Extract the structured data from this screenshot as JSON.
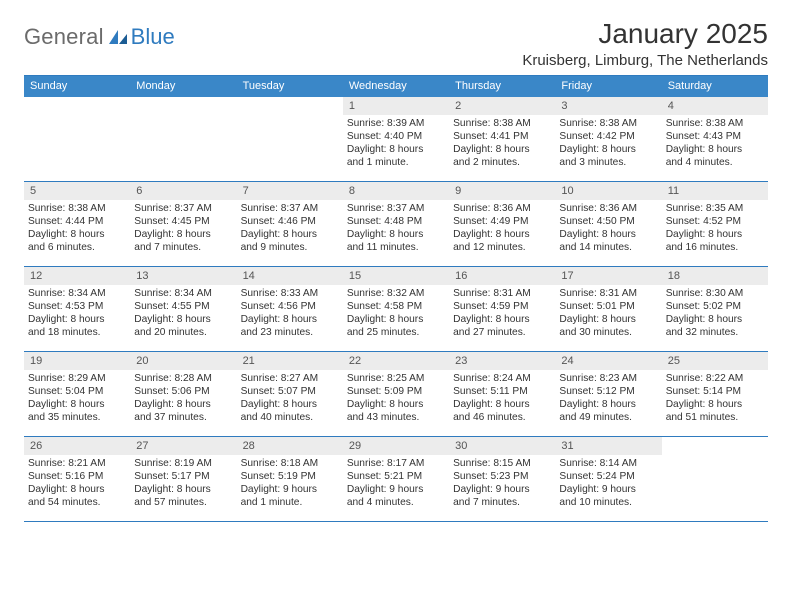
{
  "logo": {
    "word1": "General",
    "word2": "Blue"
  },
  "title": "January 2025",
  "location": "Kruisberg, Limburg, The Netherlands",
  "colors": {
    "header_bg": "#3a87c8",
    "rule": "#2f7bbf",
    "daynum_bg": "#ececec",
    "text": "#333333",
    "logo_gray": "#6b6b6b",
    "logo_blue": "#2f7bbf"
  },
  "dow": [
    "Sunday",
    "Monday",
    "Tuesday",
    "Wednesday",
    "Thursday",
    "Friday",
    "Saturday"
  ],
  "weeks": [
    [
      {
        "n": "",
        "lines": []
      },
      {
        "n": "",
        "lines": []
      },
      {
        "n": "",
        "lines": []
      },
      {
        "n": "1",
        "lines": [
          "Sunrise: 8:39 AM",
          "Sunset: 4:40 PM",
          "Daylight: 8 hours",
          "and 1 minute."
        ]
      },
      {
        "n": "2",
        "lines": [
          "Sunrise: 8:38 AM",
          "Sunset: 4:41 PM",
          "Daylight: 8 hours",
          "and 2 minutes."
        ]
      },
      {
        "n": "3",
        "lines": [
          "Sunrise: 8:38 AM",
          "Sunset: 4:42 PM",
          "Daylight: 8 hours",
          "and 3 minutes."
        ]
      },
      {
        "n": "4",
        "lines": [
          "Sunrise: 8:38 AM",
          "Sunset: 4:43 PM",
          "Daylight: 8 hours",
          "and 4 minutes."
        ]
      }
    ],
    [
      {
        "n": "5",
        "lines": [
          "Sunrise: 8:38 AM",
          "Sunset: 4:44 PM",
          "Daylight: 8 hours",
          "and 6 minutes."
        ]
      },
      {
        "n": "6",
        "lines": [
          "Sunrise: 8:37 AM",
          "Sunset: 4:45 PM",
          "Daylight: 8 hours",
          "and 7 minutes."
        ]
      },
      {
        "n": "7",
        "lines": [
          "Sunrise: 8:37 AM",
          "Sunset: 4:46 PM",
          "Daylight: 8 hours",
          "and 9 minutes."
        ]
      },
      {
        "n": "8",
        "lines": [
          "Sunrise: 8:37 AM",
          "Sunset: 4:48 PM",
          "Daylight: 8 hours",
          "and 11 minutes."
        ]
      },
      {
        "n": "9",
        "lines": [
          "Sunrise: 8:36 AM",
          "Sunset: 4:49 PM",
          "Daylight: 8 hours",
          "and 12 minutes."
        ]
      },
      {
        "n": "10",
        "lines": [
          "Sunrise: 8:36 AM",
          "Sunset: 4:50 PM",
          "Daylight: 8 hours",
          "and 14 minutes."
        ]
      },
      {
        "n": "11",
        "lines": [
          "Sunrise: 8:35 AM",
          "Sunset: 4:52 PM",
          "Daylight: 8 hours",
          "and 16 minutes."
        ]
      }
    ],
    [
      {
        "n": "12",
        "lines": [
          "Sunrise: 8:34 AM",
          "Sunset: 4:53 PM",
          "Daylight: 8 hours",
          "and 18 minutes."
        ]
      },
      {
        "n": "13",
        "lines": [
          "Sunrise: 8:34 AM",
          "Sunset: 4:55 PM",
          "Daylight: 8 hours",
          "and 20 minutes."
        ]
      },
      {
        "n": "14",
        "lines": [
          "Sunrise: 8:33 AM",
          "Sunset: 4:56 PM",
          "Daylight: 8 hours",
          "and 23 minutes."
        ]
      },
      {
        "n": "15",
        "lines": [
          "Sunrise: 8:32 AM",
          "Sunset: 4:58 PM",
          "Daylight: 8 hours",
          "and 25 minutes."
        ]
      },
      {
        "n": "16",
        "lines": [
          "Sunrise: 8:31 AM",
          "Sunset: 4:59 PM",
          "Daylight: 8 hours",
          "and 27 minutes."
        ]
      },
      {
        "n": "17",
        "lines": [
          "Sunrise: 8:31 AM",
          "Sunset: 5:01 PM",
          "Daylight: 8 hours",
          "and 30 minutes."
        ]
      },
      {
        "n": "18",
        "lines": [
          "Sunrise: 8:30 AM",
          "Sunset: 5:02 PM",
          "Daylight: 8 hours",
          "and 32 minutes."
        ]
      }
    ],
    [
      {
        "n": "19",
        "lines": [
          "Sunrise: 8:29 AM",
          "Sunset: 5:04 PM",
          "Daylight: 8 hours",
          "and 35 minutes."
        ]
      },
      {
        "n": "20",
        "lines": [
          "Sunrise: 8:28 AM",
          "Sunset: 5:06 PM",
          "Daylight: 8 hours",
          "and 37 minutes."
        ]
      },
      {
        "n": "21",
        "lines": [
          "Sunrise: 8:27 AM",
          "Sunset: 5:07 PM",
          "Daylight: 8 hours",
          "and 40 minutes."
        ]
      },
      {
        "n": "22",
        "lines": [
          "Sunrise: 8:25 AM",
          "Sunset: 5:09 PM",
          "Daylight: 8 hours",
          "and 43 minutes."
        ]
      },
      {
        "n": "23",
        "lines": [
          "Sunrise: 8:24 AM",
          "Sunset: 5:11 PM",
          "Daylight: 8 hours",
          "and 46 minutes."
        ]
      },
      {
        "n": "24",
        "lines": [
          "Sunrise: 8:23 AM",
          "Sunset: 5:12 PM",
          "Daylight: 8 hours",
          "and 49 minutes."
        ]
      },
      {
        "n": "25",
        "lines": [
          "Sunrise: 8:22 AM",
          "Sunset: 5:14 PM",
          "Daylight: 8 hours",
          "and 51 minutes."
        ]
      }
    ],
    [
      {
        "n": "26",
        "lines": [
          "Sunrise: 8:21 AM",
          "Sunset: 5:16 PM",
          "Daylight: 8 hours",
          "and 54 minutes."
        ]
      },
      {
        "n": "27",
        "lines": [
          "Sunrise: 8:19 AM",
          "Sunset: 5:17 PM",
          "Daylight: 8 hours",
          "and 57 minutes."
        ]
      },
      {
        "n": "28",
        "lines": [
          "Sunrise: 8:18 AM",
          "Sunset: 5:19 PM",
          "Daylight: 9 hours",
          "and 1 minute."
        ]
      },
      {
        "n": "29",
        "lines": [
          "Sunrise: 8:17 AM",
          "Sunset: 5:21 PM",
          "Daylight: 9 hours",
          "and 4 minutes."
        ]
      },
      {
        "n": "30",
        "lines": [
          "Sunrise: 8:15 AM",
          "Sunset: 5:23 PM",
          "Daylight: 9 hours",
          "and 7 minutes."
        ]
      },
      {
        "n": "31",
        "lines": [
          "Sunrise: 8:14 AM",
          "Sunset: 5:24 PM",
          "Daylight: 9 hours",
          "and 10 minutes."
        ]
      },
      {
        "n": "",
        "lines": []
      }
    ]
  ]
}
